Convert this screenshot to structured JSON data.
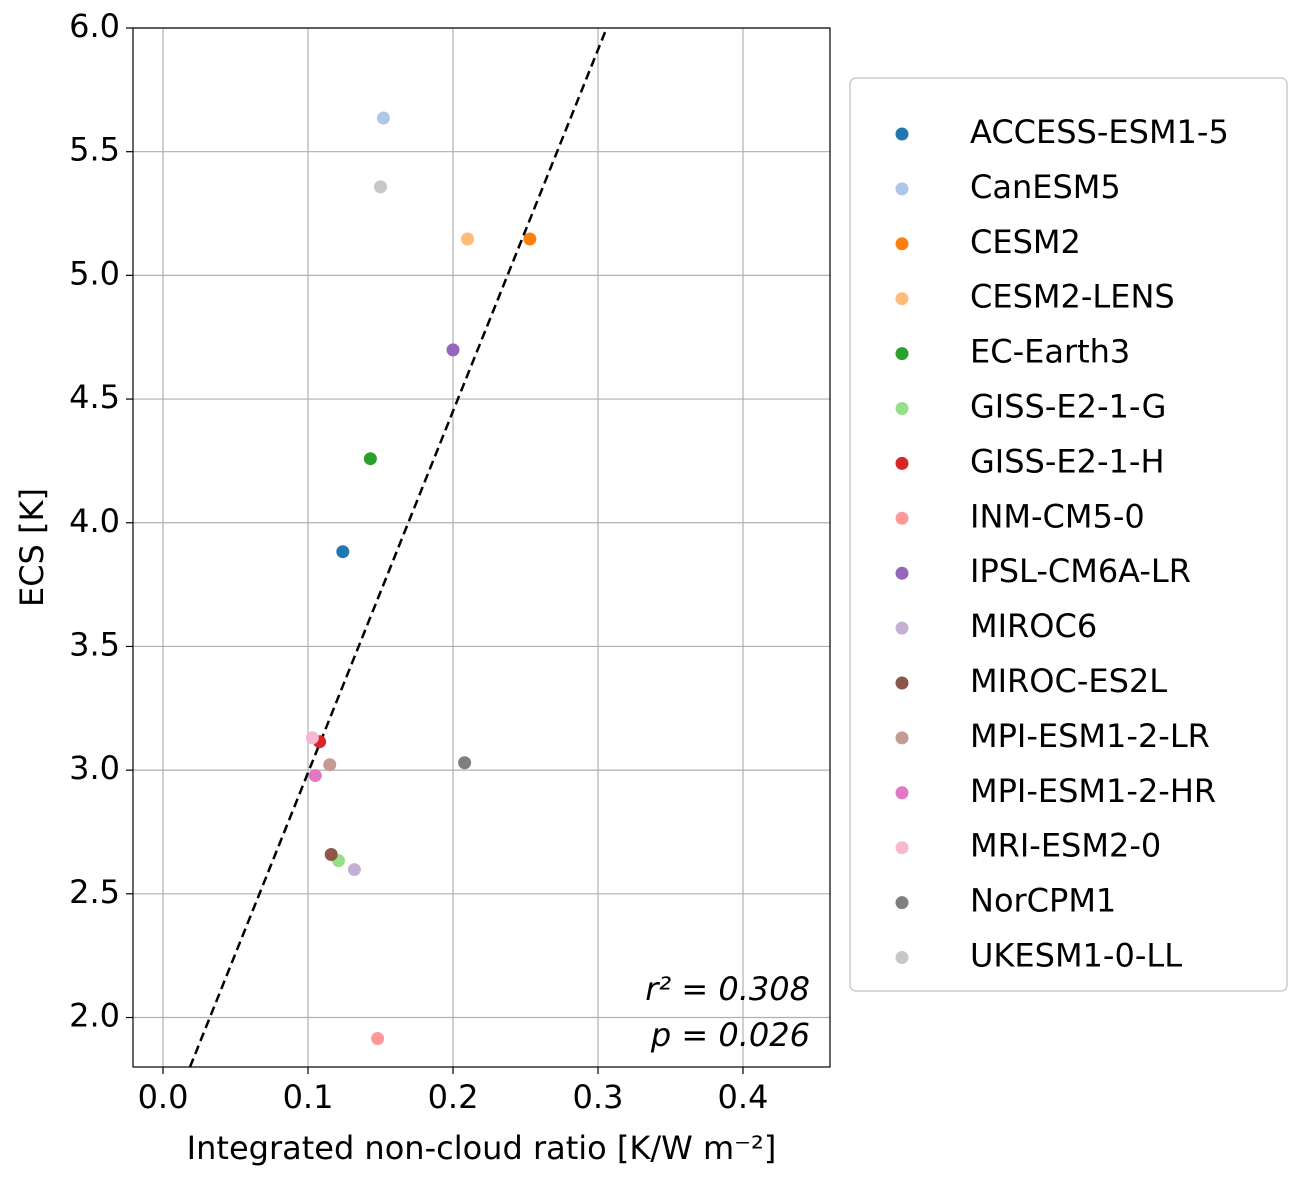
{
  "chart_data": {
    "type": "scatter",
    "xlabel": "Integrated non-cloud ratio [K/W m⁻²]",
    "ylabel": "ECS [K]",
    "xlim": [
      -0.0207,
      0.46
    ],
    "ylim": [
      1.8,
      6.0
    ],
    "xticks": [
      {
        "value": 0,
        "label": "0.0"
      },
      0.1,
      0.2,
      0.3,
      0.4
    ],
    "yticks": [
      {
        "value": 2,
        "label": "2.0"
      },
      2.5,
      {
        "value": 3,
        "label": "3.0"
      },
      3.5,
      {
        "value": 4,
        "label": "4.0"
      },
      4.5,
      {
        "value": 5,
        "label": "5.0"
      },
      5.5,
      {
        "value": 6,
        "label": "6.0"
      }
    ],
    "grid": true,
    "legend": "outside-right",
    "annotations": [
      "r² = 0.308",
      "p = 0.026"
    ],
    "fit_line": {
      "color": "#000000",
      "x": [
        0.0186,
        0.306
      ],
      "y": [
        1.8,
        6.0
      ]
    },
    "series": [
      {
        "name": "ACCESS-ESM1-5",
        "color": "#1f77b4",
        "x": [
          0.124
        ],
        "y": [
          3.883
        ]
      },
      {
        "name": "CanESM5",
        "color": "#aec7e8",
        "x": [
          0.152
        ],
        "y": [
          5.636
        ]
      },
      {
        "name": "CESM2",
        "color": "#ff7f0e",
        "x": [
          0.253
        ],
        "y": [
          5.147
        ]
      },
      {
        "name": "CESM2-LENS",
        "color": "#ffbb78",
        "x": [
          0.21
        ],
        "y": [
          5.147
        ]
      },
      {
        "name": "EC-Earth3",
        "color": "#2ca02c",
        "x": [
          0.143
        ],
        "y": [
          4.259
        ]
      },
      {
        "name": "GISS-E2-1-G",
        "color": "#98df8a",
        "x": [
          0.121
        ],
        "y": [
          2.634
        ]
      },
      {
        "name": "GISS-E2-1-H",
        "color": "#d62728",
        "x": [
          0.108
        ],
        "y": [
          3.115
        ]
      },
      {
        "name": "INM-CM5-0",
        "color": "#ff9896",
        "x": [
          0.148
        ],
        "y": [
          1.915
        ]
      },
      {
        "name": "IPSL-CM6A-LR",
        "color": "#9467bd",
        "x": [
          0.2
        ],
        "y": [
          4.699
        ]
      },
      {
        "name": "MIROC6",
        "color": "#c5b0d5",
        "x": [
          0.132
        ],
        "y": [
          2.598
        ]
      },
      {
        "name": "MIROC-ES2L",
        "color": "#8c564b",
        "x": [
          0.116
        ],
        "y": [
          2.659
        ]
      },
      {
        "name": "MPI-ESM1-2-LR",
        "color": "#c49c94",
        "x": [
          0.115
        ],
        "y": [
          3.022
        ]
      },
      {
        "name": "MPI-ESM1-2-HR",
        "color": "#e377c2",
        "x": [
          0.105
        ],
        "y": [
          2.978
        ]
      },
      {
        "name": "MRI-ESM2-0",
        "color": "#f7b6d2",
        "x": [
          0.103
        ],
        "y": [
          3.131
        ]
      },
      {
        "name": "NorCPM1",
        "color": "#7f7f7f",
        "x": [
          0.208
        ],
        "y": [
          3.03
        ]
      },
      {
        "name": "UKESM1-0-LL",
        "color": "#c7c7c7",
        "x": [
          0.15
        ],
        "y": [
          5.358
        ]
      }
    ]
  }
}
